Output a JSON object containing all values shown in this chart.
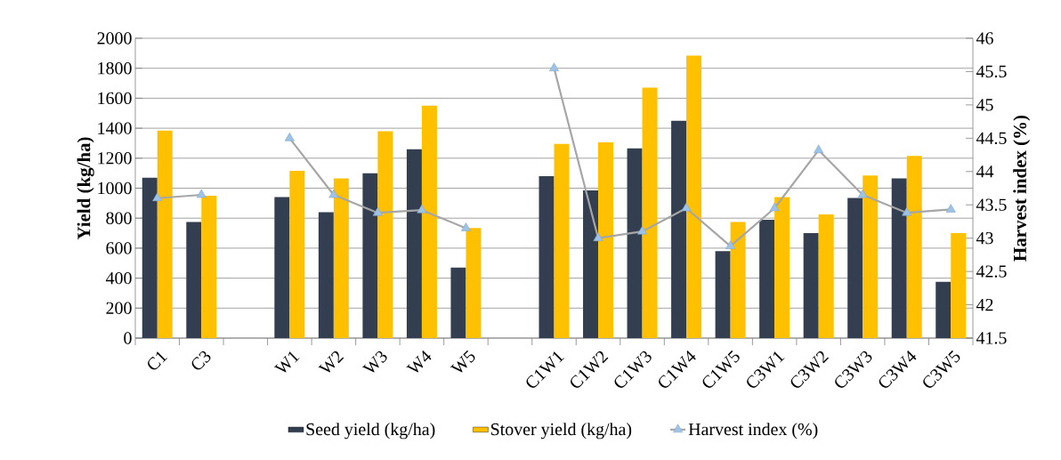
{
  "chart_data": {
    "type": "bar",
    "ylabel": "Yield (kg/ha)",
    "y2label": "Harvest index (%)",
    "categories": [
      "C1",
      "C3",
      null,
      "W1",
      "W2",
      "W3",
      "W4",
      "W5",
      null,
      "C1W1",
      "C1W2",
      "C1W3",
      "C1W4",
      "C1W5",
      "C3W1",
      "C3W2",
      "C3W3",
      "C3W4",
      "C3W5"
    ],
    "series": [
      {
        "name": "Seed yield (kg/ha)",
        "color": "#333f50",
        "values": [
          1070,
          775,
          null,
          940,
          840,
          1100,
          1260,
          470,
          null,
          1080,
          985,
          1265,
          1450,
          580,
          790,
          700,
          935,
          1065,
          375
        ]
      },
      {
        "name": "Stover yield (kg/ha)",
        "color": "#ffc000",
        "values": [
          1385,
          950,
          null,
          1115,
          1065,
          1380,
          1550,
          735,
          null,
          1295,
          1305,
          1670,
          1885,
          775,
          940,
          825,
          1085,
          1215,
          700
        ]
      },
      {
        "name": "Harvest index (%)",
        "type": "line",
        "axis": "y2",
        "color": "#a6a6a6",
        "marker": "triangle",
        "values": [
          43.6,
          43.65,
          null,
          44.5,
          43.65,
          43.38,
          43.42,
          43.15,
          null,
          45.55,
          43.0,
          43.1,
          43.45,
          42.88,
          43.45,
          44.32,
          43.65,
          43.38,
          43.43
        ]
      }
    ],
    "ylim": [
      0,
      2000
    ],
    "yticks": [
      0,
      200,
      400,
      600,
      800,
      1000,
      1200,
      1400,
      1600,
      1800,
      2000
    ],
    "y2lim": [
      41.5,
      46
    ],
    "y2ticks": [
      41.5,
      42,
      42.5,
      43,
      43.5,
      44,
      44.5,
      45,
      45.5,
      46
    ],
    "grid": "y",
    "legend": "bottom"
  }
}
